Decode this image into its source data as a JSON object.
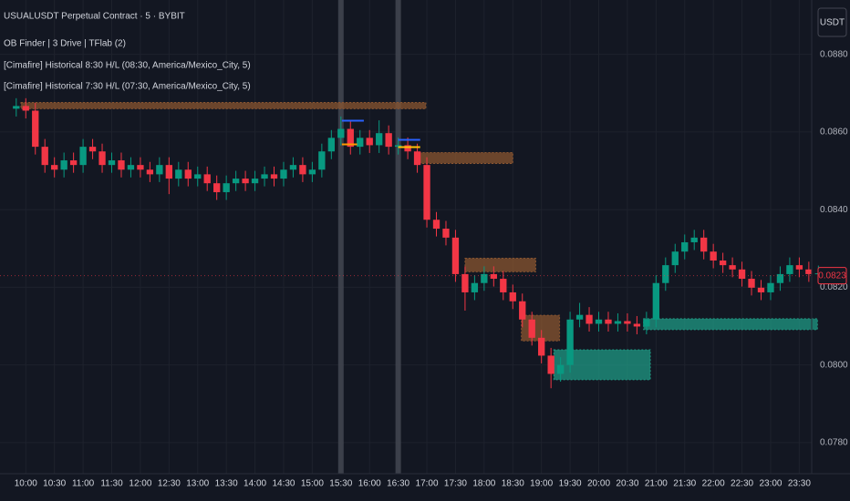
{
  "chart_data": {
    "type": "candlestick",
    "title": "USUALUSDT Perpetual Contract · 5 · BYBIT",
    "indicators": [
      "OB Finder | 3 Drive | TFlab (2)",
      "[Cimafire] Historical 8:30 H/L (08:30, America/Mexico_City, 5)",
      "[Cimafire] Historical 7:30 H/L (07:30, America/Mexico_City, 5)"
    ],
    "currency": "USDT",
    "up_color": "#089981",
    "down_color": "#f23645",
    "x": [
      590,
      600,
      610,
      620,
      630,
      640,
      650,
      660,
      670,
      680,
      690,
      700,
      710,
      720,
      730,
      740,
      750,
      760,
      770,
      780,
      790,
      800,
      810,
      820,
      830,
      840,
      850,
      860,
      870,
      880,
      890,
      900,
      910,
      920,
      930,
      940,
      950,
      960,
      970,
      980,
      990,
      1000,
      1010,
      1020,
      1030,
      1040,
      1050,
      1060,
      1070,
      1080,
      1090,
      1100,
      1110,
      1120,
      1130,
      1140,
      1150,
      1160,
      1170,
      1180,
      1190,
      1200,
      1210,
      1220,
      1230,
      1240,
      1250,
      1260,
      1270,
      1280,
      1290,
      1300,
      1310,
      1320,
      1330,
      1340,
      1350,
      1360,
      1370,
      1380,
      1390,
      1400,
      1410,
      1420,
      1430
    ],
    "open": [
      0.0866,
      0.08667,
      0.08655,
      0.08562,
      0.08515,
      0.08503,
      0.08527,
      0.08515,
      0.08562,
      0.0855,
      0.08515,
      0.08527,
      0.08503,
      0.08515,
      0.08503,
      0.08491,
      0.08515,
      0.0848,
      0.08503,
      0.0848,
      0.08491,
      0.08468,
      0.08445,
      0.08468,
      0.0848,
      0.08468,
      0.0848,
      0.08491,
      0.0848,
      0.08503,
      0.08515,
      0.08491,
      0.08503,
      0.0855,
      0.08585,
      0.08608,
      0.08562,
      0.08585,
      0.08566,
      0.08597,
      0.08562,
      0.08566,
      0.0855,
      0.08515,
      0.08374,
      0.08351,
      0.08328,
      0.08234,
      0.08187,
      0.08211,
      0.08234,
      0.08222,
      0.08187,
      0.08164,
      0.08117,
      0.0807,
      0.08024,
      0.07977,
      0.08,
      0.08117,
      0.08129,
      0.08106,
      0.08117,
      0.08106,
      0.08113,
      0.08106,
      0.08099,
      0.08117,
      0.08211,
      0.08257,
      0.08292,
      0.08316,
      0.08328,
      0.08292,
      0.08269,
      0.08257,
      0.08246,
      0.08222,
      0.08199,
      0.08187,
      0.08211,
      0.08234,
      0.08257,
      0.08246,
      0.08234
    ],
    "high": [
      0.08687,
      0.08687,
      0.08675,
      0.08582,
      0.08535,
      0.08547,
      0.08547,
      0.08582,
      0.08582,
      0.0857,
      0.08547,
      0.08547,
      0.08535,
      0.08535,
      0.08523,
      0.08535,
      0.08535,
      0.08523,
      0.08523,
      0.08511,
      0.08511,
      0.08488,
      0.08488,
      0.085,
      0.085,
      0.085,
      0.08511,
      0.08511,
      0.08523,
      0.08535,
      0.08535,
      0.08523,
      0.0857,
      0.08605,
      0.0864,
      0.08628,
      0.08605,
      0.08605,
      0.0863,
      0.08617,
      0.08586,
      0.08586,
      0.0857,
      0.08535,
      0.08394,
      0.08371,
      0.08348,
      0.08254,
      0.08231,
      0.08254,
      0.08254,
      0.08242,
      0.08207,
      0.08184,
      0.08137,
      0.0809,
      0.08044,
      0.0802,
      0.08137,
      0.0816,
      0.08149,
      0.08137,
      0.08137,
      0.08133,
      0.08133,
      0.08126,
      0.08137,
      0.08231,
      0.08277,
      0.08312,
      0.08336,
      0.08348,
      0.08348,
      0.08312,
      0.08289,
      0.08277,
      0.08266,
      0.08242,
      0.08219,
      0.08231,
      0.08254,
      0.08277,
      0.08277,
      0.08266,
      0.08256
    ],
    "low": [
      0.0864,
      0.08635,
      0.08542,
      0.08495,
      0.08483,
      0.08483,
      0.08495,
      0.08495,
      0.0853,
      0.08495,
      0.08495,
      0.08483,
      0.08483,
      0.08483,
      0.08471,
      0.08471,
      0.0844,
      0.0846,
      0.0846,
      0.0846,
      0.08448,
      0.08425,
      0.08425,
      0.08448,
      0.08448,
      0.08448,
      0.0846,
      0.0846,
      0.0846,
      0.08483,
      0.08471,
      0.08471,
      0.08483,
      0.0853,
      0.08565,
      0.08542,
      0.08542,
      0.08546,
      0.08546,
      0.08542,
      0.08542,
      0.0853,
      0.08495,
      0.08354,
      0.08331,
      0.08308,
      0.08214,
      0.0814,
      0.08167,
      0.08191,
      0.08202,
      0.08167,
      0.08144,
      0.08097,
      0.0805,
      0.08004,
      0.0794,
      0.07957,
      0.0798,
      0.08097,
      0.08086,
      0.08086,
      0.08086,
      0.08086,
      0.08086,
      0.08079,
      0.08079,
      0.08097,
      0.08191,
      0.08237,
      0.08272,
      0.08296,
      0.08272,
      0.08249,
      0.08237,
      0.08226,
      0.08202,
      0.08179,
      0.08167,
      0.08167,
      0.08191,
      0.08214,
      0.08226,
      0.08214,
      0.08214
    ],
    "close": [
      0.08667,
      0.08655,
      0.08562,
      0.08515,
      0.08503,
      0.08527,
      0.08515,
      0.08562,
      0.0855,
      0.08515,
      0.08527,
      0.08503,
      0.08515,
      0.08503,
      0.08491,
      0.08515,
      0.0848,
      0.08503,
      0.0848,
      0.08491,
      0.08468,
      0.08445,
      0.08468,
      0.0848,
      0.08468,
      0.0848,
      0.08491,
      0.0848,
      0.08503,
      0.08515,
      0.08491,
      0.08503,
      0.0855,
      0.08585,
      0.08608,
      0.08562,
      0.08585,
      0.08566,
      0.08597,
      0.08562,
      0.08566,
      0.0855,
      0.08515,
      0.08374,
      0.08351,
      0.08328,
      0.08234,
      0.08187,
      0.08211,
      0.08234,
      0.08222,
      0.08187,
      0.08164,
      0.08117,
      0.0807,
      0.08024,
      0.07977,
      0.08,
      0.08117,
      0.08129,
      0.08106,
      0.08117,
      0.08106,
      0.08113,
      0.08106,
      0.08099,
      0.08117,
      0.08211,
      0.08257,
      0.08292,
      0.08316,
      0.08328,
      0.08292,
      0.08269,
      0.08257,
      0.08246,
      0.08222,
      0.08199,
      0.08187,
      0.08211,
      0.08234,
      0.08257,
      0.08246,
      0.08234,
      0.08236
    ],
    "zones": [
      {
        "x": [
          595,
          1019
        ],
        "y": [
          0.0866,
          0.08676
        ],
        "color": "#8a5530"
      },
      {
        "x": [
          1008,
          1110
        ],
        "y": [
          0.08519,
          0.08547
        ],
        "color": "#8a5530"
      },
      {
        "x": [
          1060,
          1134
        ],
        "y": [
          0.0824,
          0.08275
        ],
        "color": "#8a5530"
      },
      {
        "x": [
          1119,
          1159
        ],
        "y": [
          0.08062,
          0.08128
        ],
        "color": "#8a5530"
      },
      {
        "x": [
          1153,
          1254
        ],
        "y": [
          0.07962,
          0.08039
        ],
        "color": "#1f9a84"
      },
      {
        "x": [
          1247,
          1429
        ],
        "y": [
          0.08091,
          0.08119
        ],
        "color": "#1f9a84"
      }
    ],
    "levels": [
      {
        "x": [
          931,
          954
        ],
        "y": 0.08629,
        "color": "#2962ff"
      },
      {
        "x": [
          931,
          947
        ],
        "y": 0.08568,
        "color": "#ff9800"
      },
      {
        "x": [
          990,
          1013
        ],
        "y": 0.0858,
        "color": "#2962ff"
      },
      {
        "x": [
          990,
          1013
        ],
        "y": 0.08561,
        "color": "#ffc107"
      }
    ],
    "session_lines": [
      930,
      990
    ],
    "last_price": 0.0823,
    "xlim": [
      573,
      1423
    ],
    "ylim": [
      0.0772,
      0.0894
    ],
    "xticks": [
      {
        "value": 600,
        "label": "10:00"
      },
      {
        "value": 630,
        "label": "10:30"
      },
      {
        "value": 660,
        "label": "11:00"
      },
      {
        "value": 690,
        "label": "11:30"
      },
      {
        "value": 720,
        "label": "12:00"
      },
      {
        "value": 750,
        "label": "12:30"
      },
      {
        "value": 780,
        "label": "13:00"
      },
      {
        "value": 810,
        "label": "13:30"
      },
      {
        "value": 840,
        "label": "14:00"
      },
      {
        "value": 870,
        "label": "14:30"
      },
      {
        "value": 900,
        "label": "15:00"
      },
      {
        "value": 930,
        "label": "15:30"
      },
      {
        "value": 960,
        "label": "16:00"
      },
      {
        "value": 990,
        "label": "16:30"
      },
      {
        "value": 1020,
        "label": "17:00"
      },
      {
        "value": 1050,
        "label": "17:30"
      },
      {
        "value": 1080,
        "label": "18:00"
      },
      {
        "value": 1110,
        "label": "18:30"
      },
      {
        "value": 1140,
        "label": "19:00"
      },
      {
        "value": 1170,
        "label": "19:30"
      },
      {
        "value": 1200,
        "label": "20:00"
      },
      {
        "value": 1230,
        "label": "20:30"
      },
      {
        "value": 1260,
        "label": "21:00"
      },
      {
        "value": 1290,
        "label": "21:30"
      },
      {
        "value": 1320,
        "label": "22:00"
      },
      {
        "value": 1350,
        "label": "22:30"
      },
      {
        "value": 1380,
        "label": "23:00"
      },
      {
        "value": 1410,
        "label": "23:30"
      }
    ],
    "yticks": [
      {
        "value": 0.078,
        "label": "0.0780"
      },
      {
        "value": 0.08,
        "label": "0.0800"
      },
      {
        "value": 0.082,
        "label": "0.0820"
      },
      {
        "value": 0.084,
        "label": "0.0840"
      },
      {
        "value": 0.086,
        "label": "0.0860"
      },
      {
        "value": 0.088,
        "label": "0.0880"
      }
    ],
    "grid": true
  }
}
